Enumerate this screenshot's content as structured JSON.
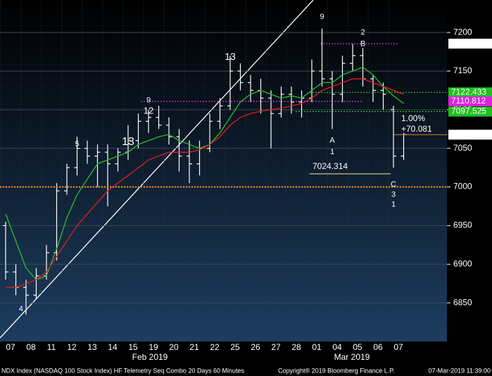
{
  "chart_data": {
    "type": "ohlc",
    "categories": [
      "07",
      null,
      "08",
      null,
      "11",
      null,
      "12",
      null,
      "13",
      null,
      "14",
      null,
      "15",
      null,
      "19",
      null,
      "20",
      null,
      "21",
      null,
      "22",
      null,
      "25",
      null,
      "26",
      null,
      "27",
      null,
      "28",
      null,
      "01",
      null,
      "04",
      null,
      "05",
      null,
      "06",
      null,
      "07",
      null
    ],
    "months": [
      "Feb 2019",
      "Mar 2019"
    ],
    "open": [
      6950,
      6890,
      6870,
      6860,
      6885,
      6915,
      6995,
      7025,
      7050,
      7040,
      7045,
      7030,
      7045,
      7060,
      7085,
      7090,
      7080,
      7065,
      7040,
      7030,
      7050,
      7085,
      7105,
      7150,
      7135,
      7125,
      7115,
      7095,
      7120,
      7110,
      7115,
      7150,
      7140,
      7120,
      7160,
      7170,
      7140,
      7125,
      7100,
      7040
    ],
    "high": [
      6955,
      6900,
      6880,
      6895,
      6925,
      7005,
      7030,
      7065,
      7060,
      7055,
      7055,
      7050,
      7080,
      7095,
      7100,
      7105,
      7090,
      7075,
      7060,
      7060,
      7095,
      7115,
      7170,
      7160,
      7145,
      7140,
      7125,
      7130,
      7130,
      7125,
      7165,
      7205,
      7150,
      7170,
      7185,
      7180,
      7145,
      7135,
      7105,
      7070
    ],
    "low": [
      6880,
      6860,
      6835,
      6855,
      6880,
      6905,
      6990,
      7015,
      7030,
      7000,
      6975,
      7020,
      7035,
      7050,
      7070,
      7075,
      7055,
      7020,
      7005,
      7015,
      7045,
      7075,
      7100,
      7125,
      7110,
      7095,
      7050,
      7090,
      7095,
      7090,
      7110,
      7130,
      7075,
      7110,
      7150,
      7130,
      7110,
      7100,
      7025,
      7035
    ],
    "close": [
      6890,
      6870,
      6860,
      6885,
      6915,
      6995,
      7025,
      7050,
      7040,
      7045,
      7030,
      7045,
      7060,
      7085,
      7090,
      7080,
      7065,
      7040,
      7030,
      7050,
      7085,
      7105,
      7150,
      7135,
      7125,
      7115,
      7095,
      7120,
      7110,
      7115,
      7150,
      7140,
      7120,
      7160,
      7170,
      7140,
      7125,
      7120,
      7040,
      7068
    ],
    "series": [
      {
        "color": "#2bbf2b",
        "values": [
          6965,
          6930,
          6895,
          6880,
          6885,
          6920,
          6960,
          6990,
          7010,
          7030,
          7035,
          7040,
          7045,
          7055,
          7060,
          7065,
          7068,
          7060,
          7055,
          7050,
          7055,
          7070,
          7090,
          7110,
          7120,
          7125,
          7120,
          7115,
          7118,
          7115,
          7125,
          7135,
          7135,
          7145,
          7150,
          7155,
          7145,
          7130,
          7118,
          7108
        ]
      },
      {
        "color": "#e02020",
        "values": [
          6870,
          6870,
          6875,
          6880,
          6890,
          6910,
          6930,
          6950,
          6965,
          6980,
          6995,
          7005,
          7015,
          7025,
          7035,
          7040,
          7045,
          7045,
          7045,
          7048,
          7055,
          7065,
          7080,
          7090,
          7095,
          7098,
          7100,
          7102,
          7105,
          7108,
          7115,
          7125,
          7130,
          7135,
          7140,
          7140,
          7135,
          7130,
          7125,
          7120
        ]
      }
    ],
    "levels": [
      {
        "value": 7185.545,
        "color": "#ff40ff",
        "fg": "#ff40ff",
        "bg": "#ffffff"
      },
      {
        "value": 7122.433,
        "color": "#20e020",
        "fg": "#ffffff",
        "bg": "#20c020"
      },
      {
        "value": 7110.812,
        "color": "#ff40ff",
        "fg": "#ffffff",
        "bg": "#e020e0"
      },
      {
        "value": 7097.525,
        "color": "#20e020",
        "fg": "#ffffff",
        "bg": "#20c020"
      },
      {
        "value": 7067.703,
        "color": "#e08020",
        "fg": "#000000",
        "bg": "#ffffff"
      },
      {
        "value": 7024.314,
        "color": "#ffee88",
        "fg": "#ffee88",
        "bg": null
      },
      {
        "value": 7000,
        "color": "#ff8c00",
        "fg": null,
        "bg": null
      }
    ],
    "change_pct": 1.0,
    "change_pct_label": "1.00%",
    "change": 70.081,
    "change_label": "+70.081",
    "ylim": [
      6800,
      7242
    ],
    "yticks": [
      6850,
      6900,
      6950,
      7000,
      7050,
      7100,
      7150,
      7200
    ],
    "annotations": [
      {
        "text": "13",
        "color": "#ff40ff"
      },
      {
        "text": "13",
        "color": "#ffd040"
      },
      {
        "text": "9",
        "color": "#20e020"
      },
      {
        "text": "2",
        "color": "#ffd040"
      },
      {
        "text": "B",
        "color": "#40e0ff"
      },
      {
        "text": "A",
        "color": "#40e0ff"
      },
      {
        "text": "1",
        "color": "#ffd040"
      },
      {
        "text": "C",
        "color": "#40e0ff"
      },
      {
        "text": "3",
        "color": "#ffd040"
      },
      {
        "text": "1",
        "color": "#ff40ff"
      },
      {
        "text": "4",
        "color": "#40e0ff"
      },
      {
        "text": "5",
        "color": "#ff40ff"
      },
      {
        "text": "12",
        "color": "#ff4040"
      },
      {
        "text": "9",
        "color": "#ff40ff"
      }
    ],
    "footer": {
      "left": "NDX Index (NASDAQ 100 Stock Index) HF Telemetry Seq Combo 20 Days 60 Minutes",
      "center": "Copyright® 2019 Bloomberg Finance L.P.",
      "right": "07-Mar-2019 11:39:00"
    }
  }
}
